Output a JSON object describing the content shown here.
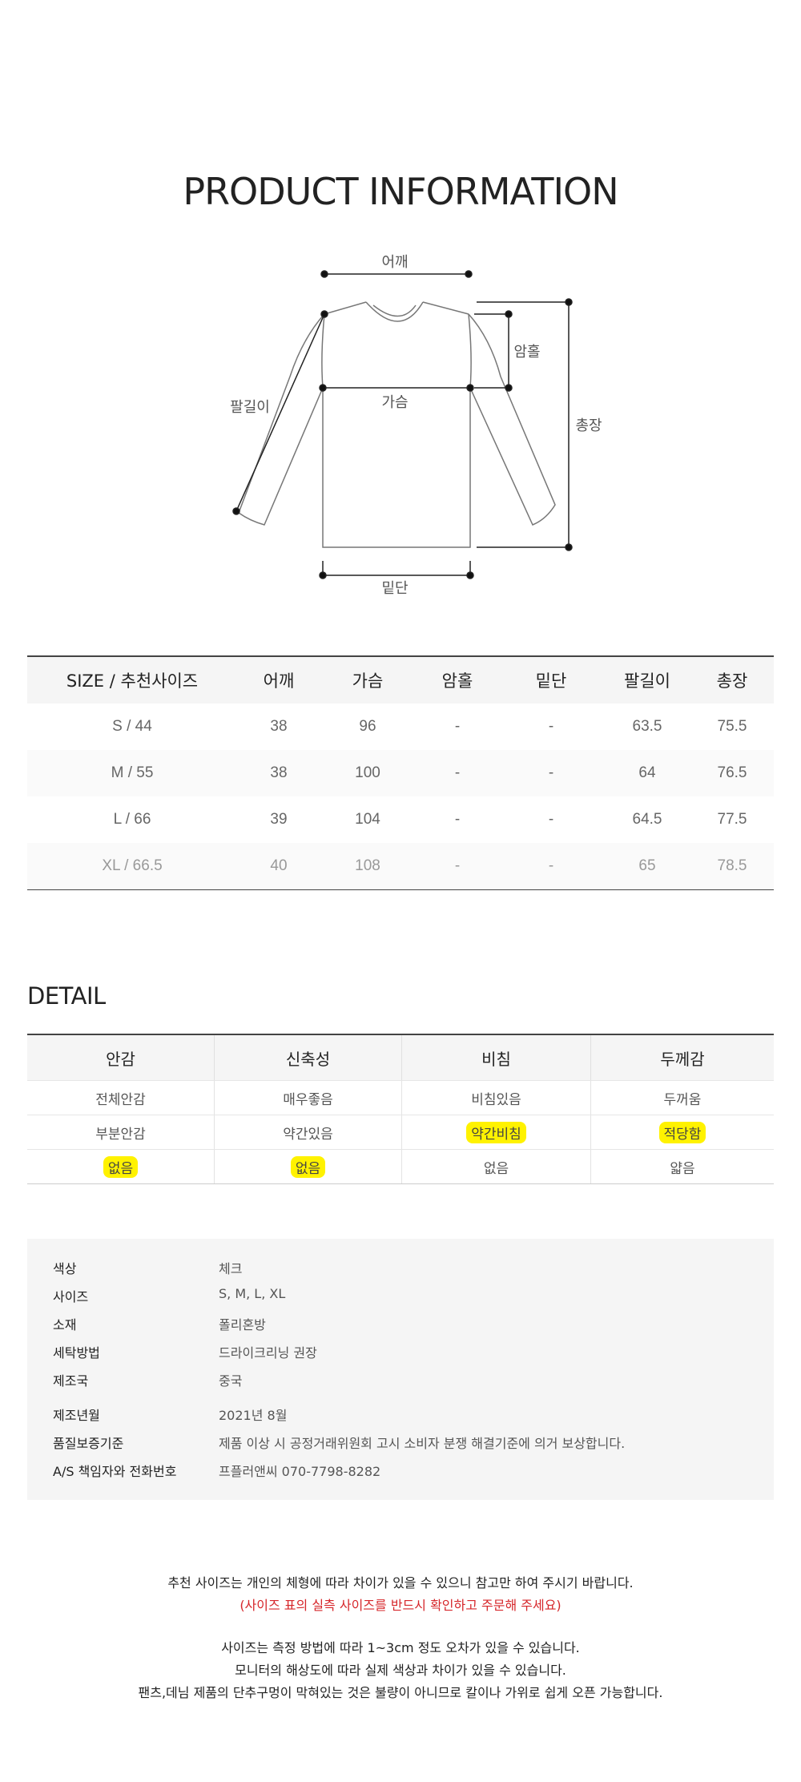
{
  "title": "PRODUCT INFORMATION",
  "diagram": {
    "labels": {
      "shoulder": "어깨",
      "armhole": "암홀",
      "chest": "가슴",
      "sleeve": "팔길이",
      "length": "총장",
      "hem": "밑단"
    }
  },
  "size_table": {
    "headers": [
      "SIZE / 추천사이즈",
      "어깨",
      "가슴",
      "암홀",
      "밑단",
      "팔길이",
      "총장"
    ],
    "rows": [
      [
        "S / 44",
        "38",
        "96",
        "-",
        "-",
        "63.5",
        "75.5"
      ],
      [
        "M / 55",
        "38",
        "100",
        "-",
        "-",
        "64",
        "76.5"
      ],
      [
        "L / 66",
        "39",
        "104",
        "-",
        "-",
        "64.5",
        "77.5"
      ],
      [
        "XL / 66.5",
        "40",
        "108",
        "-",
        "-",
        "65",
        "78.5"
      ]
    ]
  },
  "detail": {
    "title": "DETAIL",
    "headers": [
      "안감",
      "신축성",
      "비침",
      "두께감"
    ],
    "rows": [
      [
        "전체안감",
        "매우좋음",
        "비침있음",
        "두꺼움"
      ],
      [
        "부분안감",
        "약간있음",
        "약간비침",
        "적당함"
      ],
      [
        "없음",
        "없음",
        "없음",
        "얇음"
      ]
    ],
    "highlight_color": "#fff200"
  },
  "info": [
    {
      "key": "색상",
      "value": "체크"
    },
    {
      "key": "사이즈",
      "value": "S, M, L, XL"
    },
    {
      "key": "소재",
      "value": "폴리혼방"
    },
    {
      "key": "세탁방법",
      "value": "드라이크리닝 권장"
    },
    {
      "key": "제조국",
      "value": "중국"
    },
    {
      "key": "제조년월",
      "value": "2021년 8월"
    },
    {
      "key": "품질보증기준",
      "value": "제품 이상 시 공정거래위원회 고시 소비자 분쟁 해결기준에 의거 보상합니다."
    },
    {
      "key": "A/S 책임자와 전화번호",
      "value": "프플러앤씨 070-7798-8282"
    }
  ],
  "notes": {
    "line1": "추천 사이즈는 개인의 체형에 따라 차이가 있을 수 있으니 참고만 하여 주시기 바랍니다.",
    "line2": "(사이즈 표의 실측 사이즈를 반드시 확인하고 주문해 주세요)",
    "line3": "사이즈는 측정 방법에 따라 1~3cm 정도 오차가 있을 수 있습니다.",
    "line4": "모니터의 해상도에 따라 실제 색상과 차이가 있을 수 있습니다.",
    "line5": "팬츠,데님 제품의 단추구멍이 막혀있는 것은 불량이 아니므로 칼이나 가위로 쉽게 오픈 가능합니다.",
    "red_color": "#d6262a"
  }
}
